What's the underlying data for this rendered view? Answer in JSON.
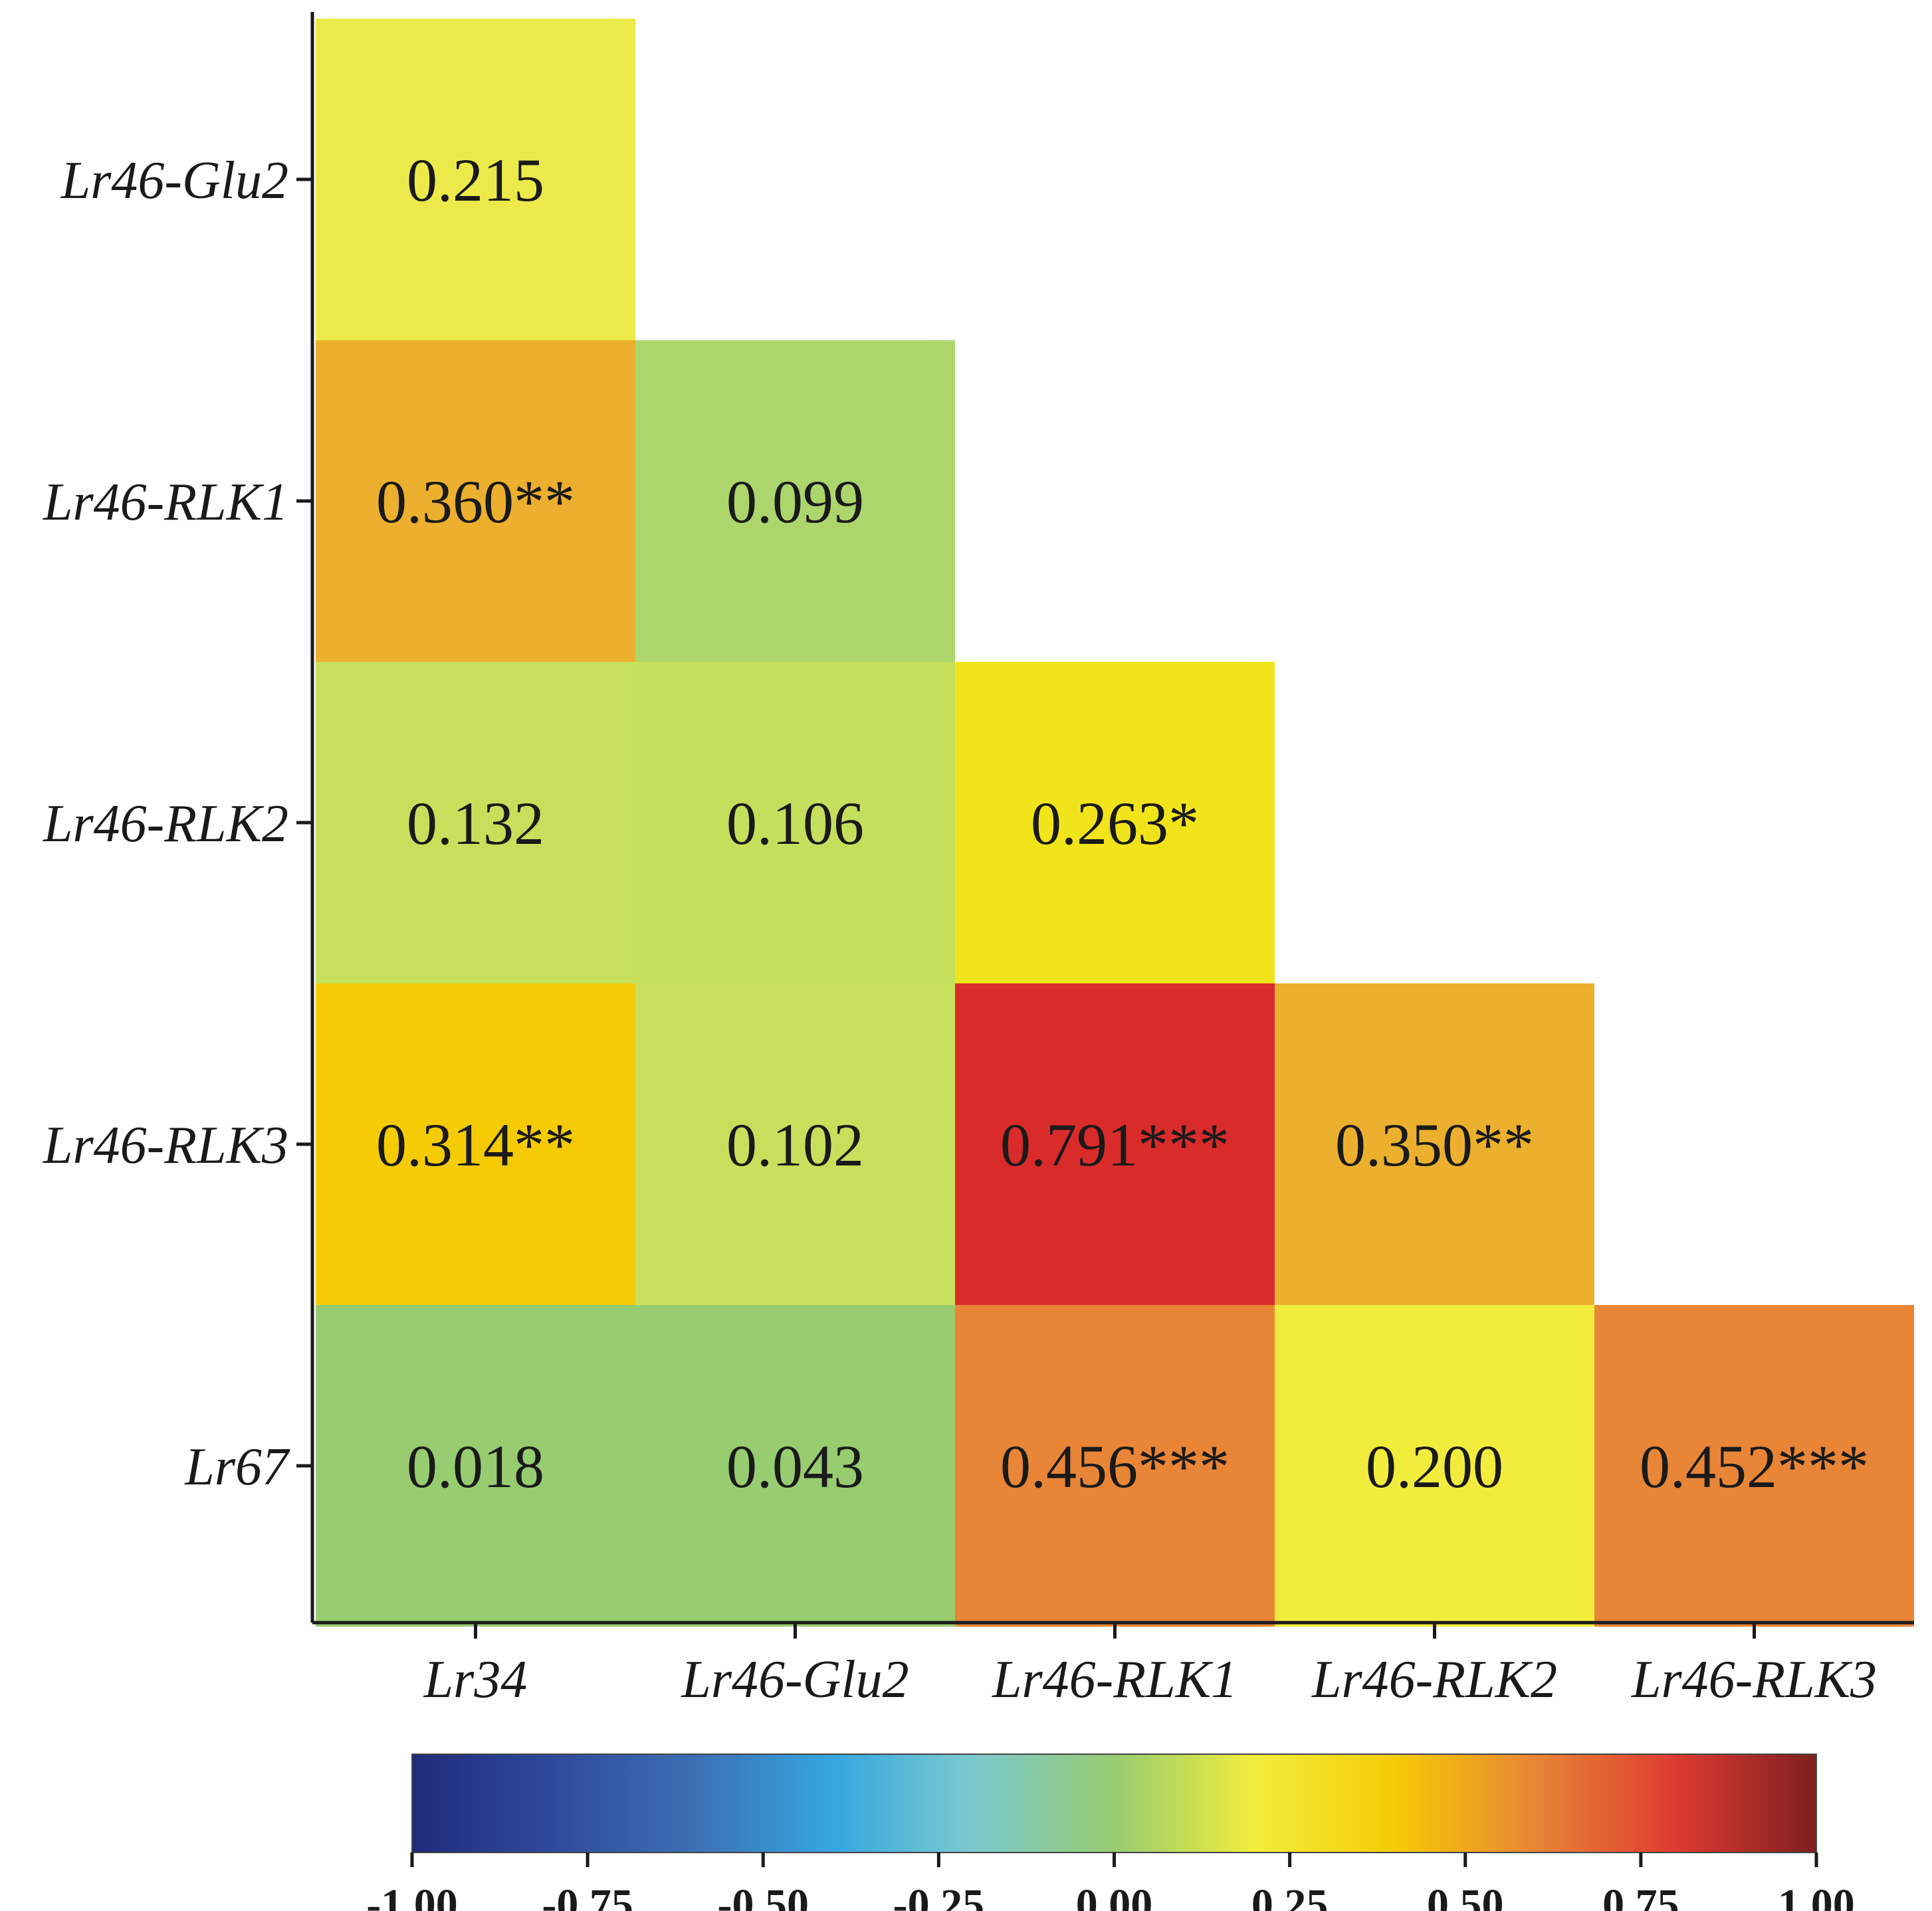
{
  "chart_data": {
    "type": "heatmap",
    "title": "",
    "xlabel": "",
    "ylabel": "",
    "columns": [
      "Lr34",
      "Lr46-Glu2",
      "Lr46-RLK1",
      "Lr46-RLK2",
      "Lr46-RLK3"
    ],
    "rows": [
      "Lr46-Glu2",
      "Lr46-RLK1",
      "Lr46-RLK2",
      "Lr46-RLK3",
      "Lr67"
    ],
    "cells": [
      {
        "row": "Lr46-Glu2",
        "col": "Lr34",
        "value": 0.215,
        "label": "0.215",
        "color": "#ecea4a"
      },
      {
        "row": "Lr46-RLK1",
        "col": "Lr34",
        "value": 0.36,
        "label": "0.360**",
        "color": "#ecb02e"
      },
      {
        "row": "Lr46-RLK1",
        "col": "Lr46-Glu2",
        "value": 0.099,
        "label": "0.099",
        "color": "#acd66c"
      },
      {
        "row": "Lr46-RLK2",
        "col": "Lr34",
        "value": 0.132,
        "label": "0.132",
        "color": "#c6e05c"
      },
      {
        "row": "Lr46-RLK2",
        "col": "Lr46-Glu2",
        "value": 0.106,
        "label": "0.106",
        "color": "#c4df5c"
      },
      {
        "row": "Lr46-RLK2",
        "col": "Lr46-RLK1",
        "value": 0.263,
        "label": "0.263*",
        "color": "#f2e41a"
      },
      {
        "row": "Lr46-RLK3",
        "col": "Lr34",
        "value": 0.314,
        "label": "0.314**",
        "color": "#f5cb05"
      },
      {
        "row": "Lr46-RLK3",
        "col": "Lr46-Glu2",
        "value": 0.102,
        "label": "0.102",
        "color": "#c6e05c"
      },
      {
        "row": "Lr46-RLK3",
        "col": "Lr46-RLK1",
        "value": 0.791,
        "label": "0.791***",
        "color": "#da2b2b"
      },
      {
        "row": "Lr46-RLK3",
        "col": "Lr46-RLK2",
        "value": 0.35,
        "label": "0.350**",
        "color": "#ecb02e"
      },
      {
        "row": "Lr67",
        "col": "Lr34",
        "value": 0.018,
        "label": "0.018",
        "color": "#97cc70"
      },
      {
        "row": "Lr67",
        "col": "Lr46-Glu2",
        "value": 0.043,
        "label": "0.043",
        "color": "#97cc70"
      },
      {
        "row": "Lr67",
        "col": "Lr46-RLK1",
        "value": 0.456,
        "label": "0.456***",
        "color": "#e88536"
      },
      {
        "row": "Lr67",
        "col": "Lr46-RLK2",
        "value": 0.2,
        "label": "0.200",
        "color": "#f2ed3c"
      },
      {
        "row": "Lr67",
        "col": "Lr46-RLK3",
        "value": 0.452,
        "label": "0.452***",
        "color": "#e88536"
      }
    ],
    "colorbar": {
      "range": [
        -1.0,
        1.0
      ],
      "ticks": [
        "-1.00",
        "-0.75",
        "-0.50",
        "-0.25",
        "0.00",
        "0.25",
        "0.50",
        "0.75",
        "1.00"
      ],
      "colors": [
        "#1f2a7a",
        "#2e4a9c",
        "#3c6fb2",
        "#36a6e0",
        "#7ccad0",
        "#97cc70",
        "#f2ed3c",
        "#f5cb05",
        "#e88536",
        "#de3b30",
        "#7e1f1f"
      ]
    },
    "grid": false,
    "legend": "bottom"
  }
}
